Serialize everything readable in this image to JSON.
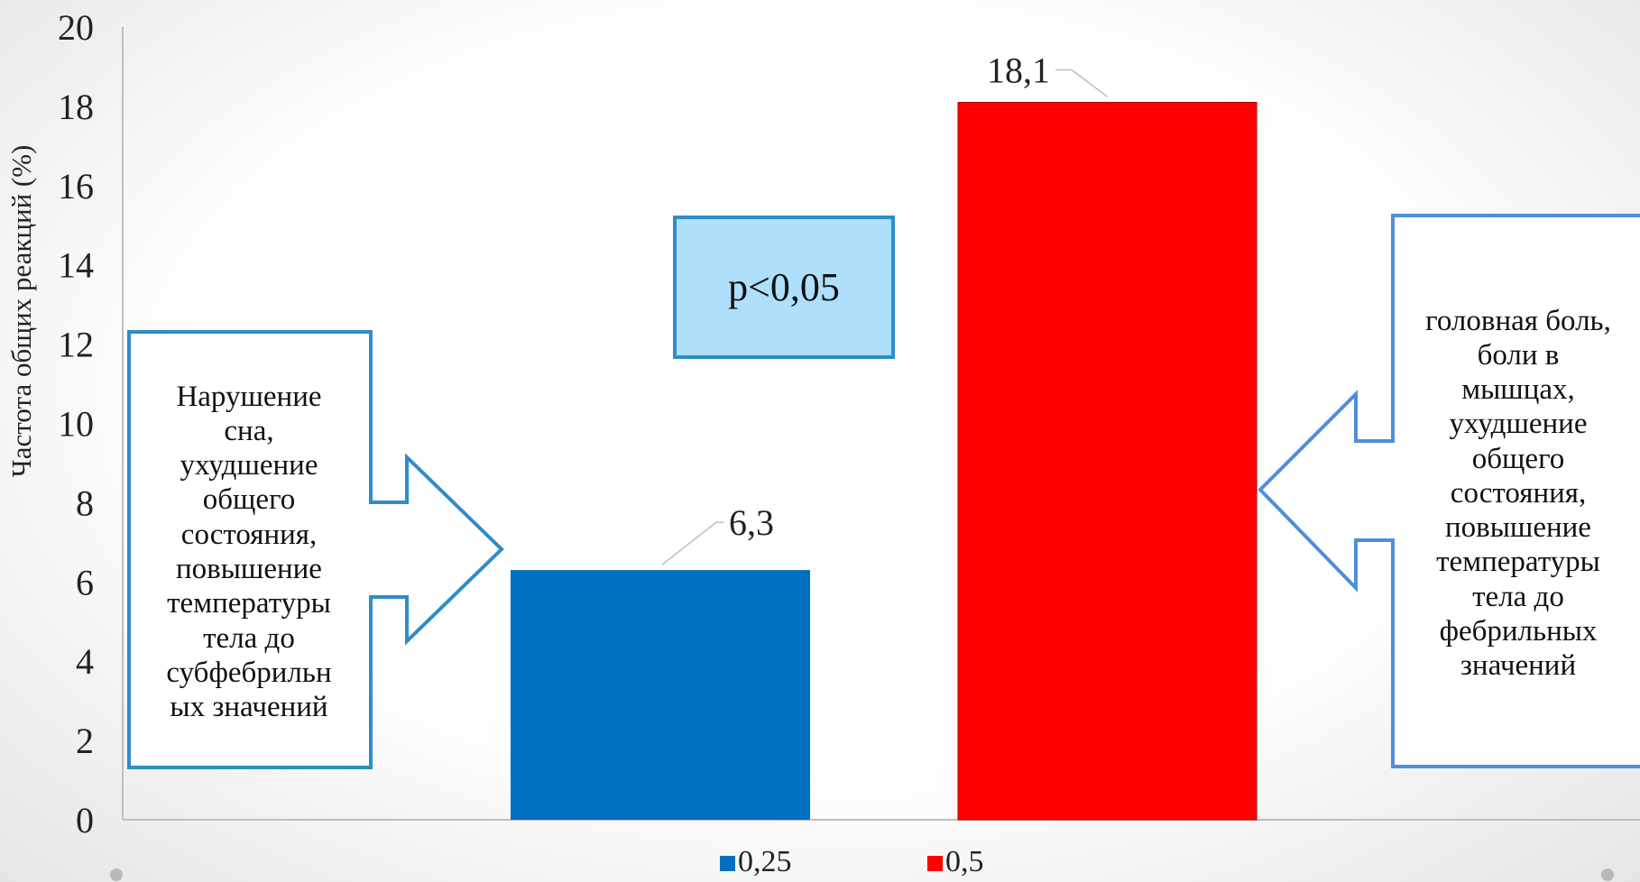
{
  "chart_data": {
    "type": "bar",
    "ylabel": "Частота общих реакций (%)",
    "ylim": [
      0,
      20
    ],
    "yticks": [
      "0",
      "2",
      "4",
      "6",
      "8",
      "10",
      "12",
      "14",
      "16",
      "18",
      "20"
    ],
    "series": [
      {
        "name": "0,25",
        "value": 6.3,
        "label": "6,3",
        "color": "#0070c0"
      },
      {
        "name": "0,5",
        "value": 18.1,
        "label": "18,1",
        "color": "#ff0000"
      }
    ],
    "legend_position": "bottom",
    "grid": false
  },
  "annotations": {
    "p_value": "p<0,05",
    "left_callout": [
      "Нарушение",
      "сна,",
      "ухудшение",
      "общего",
      "состояния,",
      "повышение",
      "температуры",
      "тела до",
      "субфебрильн",
      "ых значений"
    ],
    "right_callout": [
      "головная боль,",
      "боли в",
      "мышцах,",
      "ухудшение",
      "общего",
      "состояния,",
      "повышение",
      "температуры",
      "тела до",
      "фебрильных",
      "значений"
    ]
  }
}
